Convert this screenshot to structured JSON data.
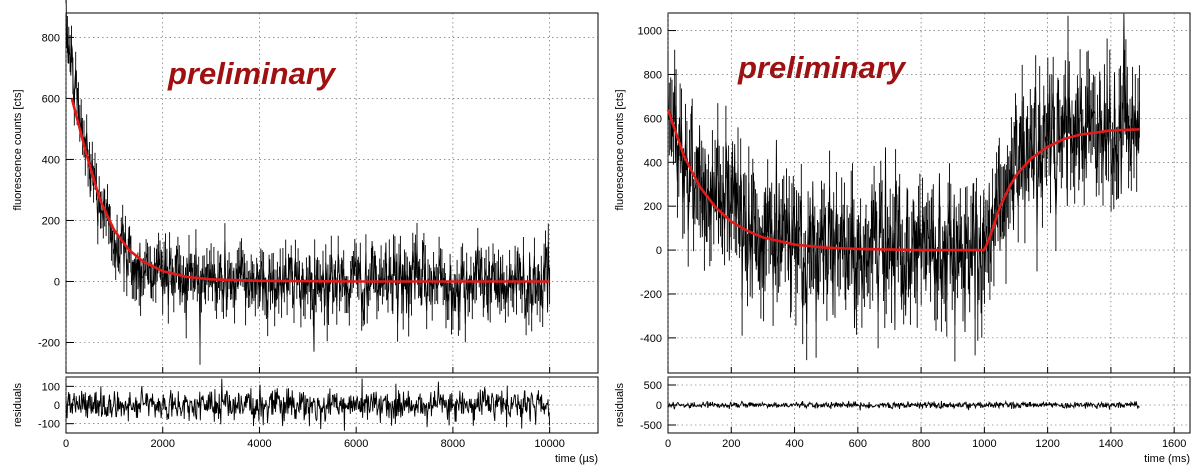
{
  "chart_data": [
    {
      "type": "line",
      "watermark": "preliminary",
      "ylabel": "fluorescence counts [cts]",
      "xlabel": "time (µs)",
      "residuals_label": "residuals",
      "xlim": [
        0,
        11000
      ],
      "ylim": [
        -300,
        880
      ],
      "residuals_ylim": [
        -150,
        150
      ],
      "x_ticks": [
        "0",
        "2000",
        "4000",
        "6000",
        "8000",
        "10000"
      ],
      "y_ticks": [
        "-200",
        "0",
        "200",
        "400",
        "600",
        "800"
      ],
      "residuals_y_ticks": [
        "-100",
        "0",
        "100"
      ],
      "grid": true,
      "series": [
        {
          "role": "data",
          "color": "#000000",
          "description_points": {
            "x": [
              0,
              100,
              200,
              300,
              400,
              500,
              700,
              900,
              1200,
              1500,
              2000,
              3000,
              4000,
              5000,
              6000,
              7000,
              8000,
              9000,
              10000
            ],
            "y": [
              820,
              720,
              620,
              520,
              440,
              370,
              260,
              180,
              100,
              55,
              25,
              5,
              0,
              0,
              0,
              0,
              0,
              0,
              0
            ],
            "noise_sigma": 55
          }
        },
        {
          "role": "fit",
          "color": "#e31a1a",
          "x": [
            120,
            400,
            700,
            1000,
            1300,
            1600,
            2000,
            2500,
            3000,
            4000,
            6000,
            8000,
            10000
          ],
          "y": [
            600,
            430,
            268,
            167,
            104,
            65,
            34,
            15,
            7,
            2,
            0,
            0,
            0
          ]
        }
      ],
      "residuals_noise_sigma": 45
    },
    {
      "type": "line",
      "watermark": "preliminary",
      "ylabel": "fluorescence counts [cts]",
      "xlabel": "time (ms)",
      "residuals_label": "residuals",
      "xlim": [
        0,
        1650
      ],
      "ylim": [
        -560,
        1080
      ],
      "residuals_ylim": [
        -700,
        700
      ],
      "x_ticks": [
        "0",
        "200",
        "400",
        "600",
        "800",
        "1000",
        "1200",
        "1400",
        "1600"
      ],
      "y_ticks": [
        "-400",
        "-200",
        "0",
        "200",
        "400",
        "600",
        "800",
        "1000"
      ],
      "residuals_y_ticks": [
        "-500",
        "0",
        "500"
      ],
      "grid": true,
      "series": [
        {
          "role": "data",
          "color": "#000000",
          "description_points": {
            "x": [
              0,
              50,
              100,
              150,
              200,
              300,
              400,
              600,
              800,
              1000,
              1020,
              1050,
              1100,
              1150,
              1200,
              1300,
              1400,
              1490
            ],
            "y": [
              640,
              430,
              300,
              210,
              140,
              60,
              20,
              5,
              0,
              0,
              60,
              200,
              360,
              440,
              490,
              530,
              545,
              550
            ],
            "noise_sigma": 150
          }
        },
        {
          "role": "fit",
          "color": "#e31a1a",
          "x": [
            0,
            50,
            100,
            150,
            200,
            250,
            300,
            400,
            500,
            600,
            800,
            1000,
            1020,
            1050,
            1080,
            1100,
            1150,
            1200,
            1250,
            1300,
            1400,
            1490
          ],
          "y": [
            640,
            430,
            290,
            195,
            130,
            88,
            58,
            25,
            11,
            5,
            0,
            0,
            70,
            200,
            290,
            340,
            420,
            470,
            505,
            525,
            545,
            550
          ]
        }
      ],
      "residuals_noise_sigma": 40
    }
  ]
}
